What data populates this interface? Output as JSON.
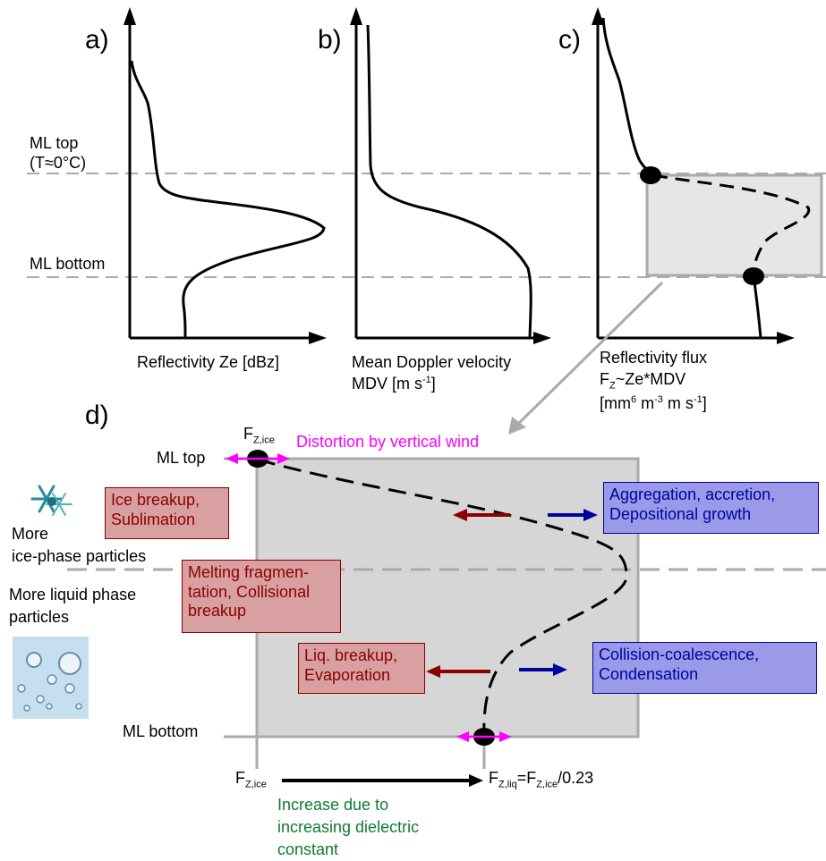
{
  "panels": {
    "a": {
      "letter": "a)",
      "xlabel": "Reflectivity Ze [dBz]"
    },
    "b": {
      "letter": "b)",
      "xlabel_line1": "Mean Doppler velocity",
      "xlabel_line2_prefix": "MDV [m s",
      "xlabel_line2_sup": "-1",
      "xlabel_line2_suffix": "]"
    },
    "c": {
      "letter": "c)",
      "xlabel_line1": "Reflectivity flux",
      "flux_F": "F",
      "flux_sub": "Z",
      "flux_rest": "~Ze*MDV",
      "unit_open": "[mm",
      "unit_sup1": "6",
      "unit_m": " m",
      "unit_sup2": "-3",
      "unit_ms": " m s",
      "unit_sup3": "-1",
      "unit_close": "]"
    }
  },
  "levels": {
    "ml_top_line1": "ML top",
    "ml_top_line2": "(T≈0°C)",
    "ml_bottom": "ML bottom"
  },
  "panel_d": {
    "letter": "d)",
    "ml_top": "ML top",
    "ml_bottom": "ML bottom",
    "fz_ice_top_F": "F",
    "fz_ice_top_sub": "Z,ice",
    "distortion": "Distortion by vertical wind",
    "more_ice_line1": "More",
    "more_ice_line2": "ice-phase particles",
    "more_liquid_line1": "More liquid phase",
    "more_liquid_line2": "particles",
    "boxes": {
      "ice_breakup": [
        "Ice breakup,",
        "Sublimation"
      ],
      "aggregation": [
        "Aggregation, accretion,",
        "Depositional growth"
      ],
      "melting": [
        "Melting fragmen-",
        "tation, Collisional",
        "breakup"
      ],
      "liq_breakup": [
        "Liq. breakup,",
        "Evaporation"
      ],
      "collision": [
        "Collision-coalescence,",
        "Condensation"
      ]
    },
    "fz_ice_bottom_F": "F",
    "fz_ice_bottom_sub": "Z,ice",
    "fz_liq_F": "F",
    "fz_liq_sub": "Z,liq",
    "fz_liq_eq": "=F",
    "fz_liq_eq_sub": "Z,ice",
    "fz_liq_ratio": "/0.23",
    "increase_line1": "Increase due to",
    "increase_line2": "increasing dielectric",
    "increase_line3": "constant"
  },
  "colors": {
    "magenta": "#ff00ff",
    "green": "#107a30",
    "dark_red": "#8b0000",
    "dark_blue": "#0000a0",
    "shade": "#d6d6d6"
  }
}
